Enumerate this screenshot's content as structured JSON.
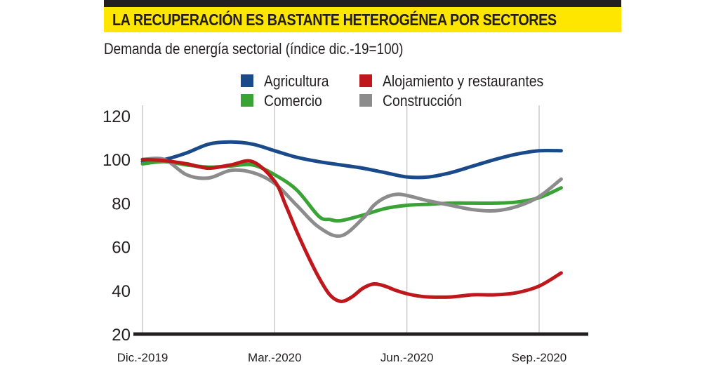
{
  "header": {
    "title": "LA RECUPERACIÓN ES BASTANTE HETEROGÉNEA POR SECTORES",
    "subtitle": "Demanda de energía sectorial (índice dic.-19=100)"
  },
  "colors": {
    "banner": "#ffe600",
    "bar": "#231f20",
    "grid": "#bfbfbf"
  },
  "chart_data": {
    "type": "line",
    "title": "LA RECUPERACIÓN ES BASTANTE HETEROGÉNEA POR SECTORES",
    "subtitle": "Demanda de energía sectorial (índice dic.-19=100)",
    "xlabel": "",
    "ylabel": "",
    "ylim": [
      20,
      120
    ],
    "yticks": [
      "20",
      "40",
      "60",
      "80",
      "100",
      "120"
    ],
    "xticks": [
      "Dic.-2019",
      "Mar.-2020",
      "Jun.-2020",
      "Sep.-2020"
    ],
    "xtick_positions": [
      0,
      3,
      6,
      9
    ],
    "xlim": [
      0,
      9.5
    ],
    "grid": "vertical",
    "legend_position": "top",
    "series": [
      {
        "name": "Agricultura",
        "color": "#1a4a8a",
        "x": [
          0,
          0.5,
          1,
          1.5,
          2,
          2.5,
          3,
          3.5,
          4,
          4.5,
          5,
          5.5,
          6,
          6.5,
          7,
          7.5,
          8,
          8.5,
          9,
          9.5
        ],
        "values": [
          99,
          100,
          103,
          107,
          108,
          107,
          104,
          101,
          99,
          97.5,
          96,
          94,
          92,
          92,
          94,
          97,
          100,
          102.5,
          104,
          104
        ]
      },
      {
        "name": "Alojamiento y restaurantes",
        "color": "#c0171c",
        "x": [
          0,
          0.5,
          1,
          1.5,
          2,
          2.5,
          3,
          3.25,
          3.5,
          3.75,
          4,
          4.25,
          4.5,
          4.75,
          5,
          5.25,
          5.5,
          5.75,
          6,
          6.25,
          6.5,
          7,
          7.5,
          8,
          8.5,
          9,
          9.5
        ],
        "values": [
          100,
          99.5,
          98,
          96,
          97.5,
          99,
          90,
          79,
          67,
          56,
          46,
          38,
          35,
          37,
          41,
          43,
          42,
          40,
          38.5,
          37.5,
          37,
          37,
          38,
          38,
          39,
          42,
          48
        ]
      },
      {
        "name": "Comercio",
        "color": "#3aa335",
        "x": [
          0,
          0.5,
          1,
          1.5,
          2,
          2.5,
          3,
          3.5,
          4,
          4.25,
          4.5,
          5,
          5.5,
          6,
          6.5,
          7,
          7.5,
          8,
          8.5,
          9,
          9.5
        ],
        "values": [
          98,
          99,
          97.5,
          96.5,
          97,
          97.5,
          93,
          86,
          74,
          72.5,
          72,
          74.5,
          77.5,
          79,
          79.5,
          80,
          80,
          80,
          80.5,
          82.5,
          87
        ]
      },
      {
        "name": "Construcción",
        "color": "#8c8c8c",
        "x": [
          0,
          0.5,
          1,
          1.5,
          2,
          2.5,
          3,
          3.5,
          4,
          4.5,
          5,
          5.25,
          5.5,
          5.75,
          6,
          6.5,
          7,
          7.5,
          8,
          8.5,
          9,
          9.5
        ],
        "values": [
          100,
          100,
          93,
          91.5,
          95,
          94,
          89,
          79,
          69,
          65,
          73,
          79,
          82.5,
          84,
          83.5,
          81,
          79,
          77,
          76.5,
          78.5,
          83,
          91
        ]
      }
    ]
  }
}
